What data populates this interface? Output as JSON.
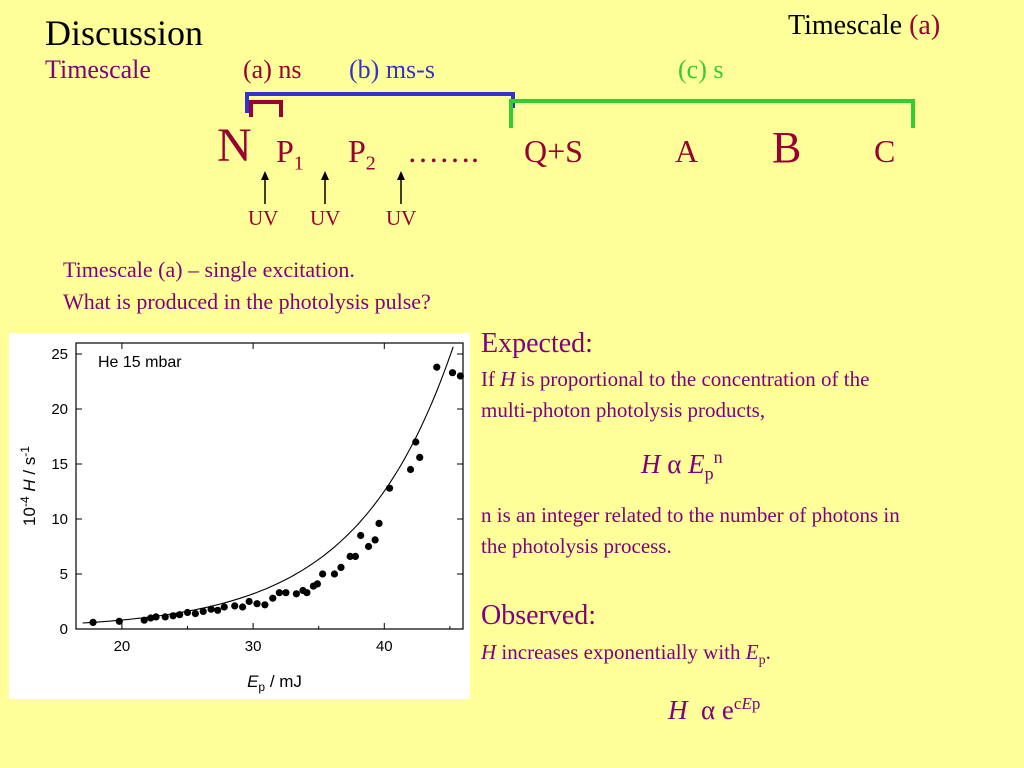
{
  "slide": {
    "title": "Discussion",
    "corner": {
      "label": "Timescale",
      "tag": "(a)"
    },
    "timescale_label": "Timescale",
    "scales": {
      "a": "(a) ns",
      "b": "(b) ms-s",
      "c": "(c) s"
    },
    "species": {
      "n": "N",
      "p1": "P",
      "p1_sub": "1",
      "p2": "P",
      "p2_sub": "2",
      "dots": "…….",
      "qs": "Q+S",
      "a": "A",
      "b": "B",
      "c": "C"
    },
    "uv": [
      "UV",
      "UV",
      "UV"
    ],
    "question_1": "Timescale (a) – single excitation.",
    "question_2": "What is produced in the photolysis pulse?",
    "expected": {
      "heading": "Expected:",
      "line1_pre": "If ",
      "line1_var": "H",
      "line1_post": " is proportional to the concentration of the",
      "line2": "multi-photon photolysis products,",
      "formula": {
        "h": "H",
        "prop": "α",
        "e": "E",
        "sub": "p",
        "sup": "n"
      },
      "note1": "n is an integer related to the number of photons in",
      "note2": "the photolysis process."
    },
    "observed": {
      "heading": "Observed:",
      "var_h": "H",
      "text": " increases exponentially with ",
      "var_e": "E",
      "sub": "p",
      "end": ".",
      "formula": {
        "h": "H",
        "prop": "α",
        "e": "e",
        "c": "c",
        "ep": "E",
        "p": "p"
      }
    }
  },
  "chart_data": {
    "type": "scatter",
    "annotation": "He 15 mbar",
    "xlabel": {
      "var": "E",
      "sub": "p",
      "unit": " / mJ"
    },
    "ylabel": {
      "prefix": "10",
      "exp": "-4",
      "var": "H",
      "unit": " / s",
      "unit_exp": "-1"
    },
    "xlim": [
      16.5,
      46
    ],
    "ylim": [
      0,
      26
    ],
    "xticks": [
      20,
      30,
      40
    ],
    "yticks": [
      0,
      5,
      10,
      15,
      20,
      25
    ],
    "points": [
      [
        17.8,
        0.6
      ],
      [
        19.8,
        0.7
      ],
      [
        21.7,
        0.8
      ],
      [
        22.2,
        1.0
      ],
      [
        22.6,
        1.1
      ],
      [
        23.3,
        1.1
      ],
      [
        23.9,
        1.2
      ],
      [
        24.4,
        1.3
      ],
      [
        25.0,
        1.5
      ],
      [
        25.6,
        1.4
      ],
      [
        26.2,
        1.6
      ],
      [
        26.8,
        1.8
      ],
      [
        27.3,
        1.7
      ],
      [
        27.8,
        2.0
      ],
      [
        28.6,
        2.1
      ],
      [
        29.2,
        2.0
      ],
      [
        29.7,
        2.5
      ],
      [
        30.3,
        2.3
      ],
      [
        30.9,
        2.2
      ],
      [
        31.5,
        2.8
      ],
      [
        32.0,
        3.3
      ],
      [
        32.5,
        3.3
      ],
      [
        33.3,
        3.2
      ],
      [
        33.8,
        3.5
      ],
      [
        34.1,
        3.3
      ],
      [
        34.6,
        3.9
      ],
      [
        34.9,
        4.1
      ],
      [
        35.3,
        5.0
      ],
      [
        36.2,
        5.0
      ],
      [
        36.7,
        5.6
      ],
      [
        37.4,
        6.6
      ],
      [
        37.8,
        6.6
      ],
      [
        38.2,
        8.5
      ],
      [
        38.8,
        7.5
      ],
      [
        39.3,
        8.1
      ],
      [
        39.6,
        9.6
      ],
      [
        40.4,
        12.8
      ],
      [
        42.0,
        14.5
      ],
      [
        42.4,
        17.0
      ],
      [
        42.7,
        15.6
      ],
      [
        44.0,
        23.8
      ],
      [
        45.2,
        23.3
      ],
      [
        45.8,
        23.0
      ]
    ],
    "fit": {
      "a": 0.0533,
      "b": 0.1365
    }
  },
  "colors": {
    "background": "#ffff99",
    "title": "#000000",
    "maroon": "#990033",
    "purple": "#800080",
    "blue": "#3333cc",
    "green": "#33cc33",
    "bracket_n": "#990033"
  }
}
